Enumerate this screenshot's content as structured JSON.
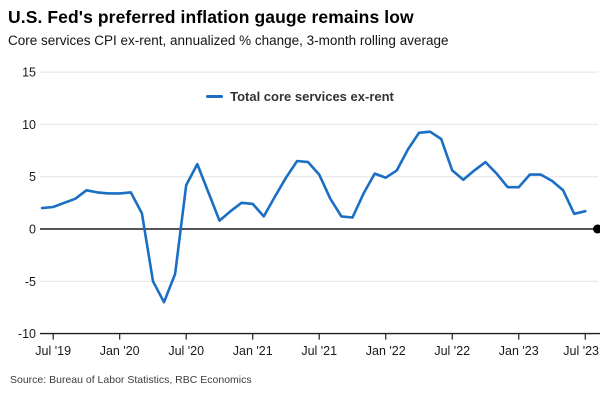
{
  "header": {
    "title": "U.S. Fed's preferred inflation gauge remains low",
    "subtitle": "Core services CPI ex-rent, annualized % change, 3-month rolling average"
  },
  "legend": {
    "label": "Total core services ex-rent"
  },
  "source": "Source: Bureau of Labor Statistics, RBC Economics",
  "colors": {
    "line": "#1a6fc4",
    "grid": "#e3e3e3",
    "axis": "#1f1f1f",
    "tick_text": "#1a1a1a",
    "end_dot": "#000000"
  },
  "chart_data": {
    "type": "line",
    "title": "U.S. Fed's preferred inflation gauge remains low",
    "subtitle": "Core services CPI ex-rent, annualized % change, 3-month rolling average",
    "xlabel": "",
    "ylabel": "",
    "ylim": [
      -10,
      15
    ],
    "y_ticks": [
      15,
      10,
      5,
      0,
      -5,
      -10
    ],
    "grid": "horizontal",
    "legend_position": "top-center",
    "zero_line": true,
    "zero_line_end_dot": {
      "value": 0
    },
    "x_ticks": [
      "2019-07",
      "2020-01",
      "2020-07",
      "2021-01",
      "2021-07",
      "2022-01",
      "2022-07",
      "2023-01",
      "2023-07"
    ],
    "x_tick_labels": [
      "Jul '19",
      "Jan '20",
      "Jul '20",
      "Jan '21",
      "Jul '21",
      "Jan '22",
      "Jul '22",
      "Jan '23",
      "Jul '23"
    ],
    "series": [
      {
        "name": "Total core services ex-rent",
        "color": "#1a6fc4",
        "x": [
          "2019-06",
          "2019-07",
          "2019-08",
          "2019-09",
          "2019-10",
          "2019-11",
          "2019-12",
          "2020-01",
          "2020-02",
          "2020-03",
          "2020-04",
          "2020-05",
          "2020-06",
          "2020-07",
          "2020-08",
          "2020-09",
          "2020-10",
          "2020-11",
          "2020-12",
          "2021-01",
          "2021-02",
          "2021-03",
          "2021-04",
          "2021-05",
          "2021-06",
          "2021-07",
          "2021-08",
          "2021-09",
          "2021-10",
          "2021-11",
          "2021-12",
          "2022-01",
          "2022-02",
          "2022-03",
          "2022-04",
          "2022-05",
          "2022-06",
          "2022-07",
          "2022-08",
          "2022-09",
          "2022-10",
          "2022-11",
          "2022-12",
          "2023-01",
          "2023-02",
          "2023-03",
          "2023-04",
          "2023-05",
          "2023-06",
          "2023-07"
        ],
        "values": [
          2.0,
          2.1,
          2.5,
          2.9,
          3.7,
          3.5,
          3.4,
          3.4,
          3.5,
          1.5,
          -5.0,
          -7.0,
          -4.3,
          4.2,
          6.2,
          3.5,
          0.8,
          1.7,
          2.5,
          2.4,
          1.2,
          3.1,
          4.9,
          6.5,
          6.4,
          5.2,
          2.9,
          1.2,
          1.1,
          3.4,
          5.3,
          4.9,
          5.6,
          7.6,
          9.2,
          9.3,
          8.6,
          5.6,
          4.7,
          5.6,
          6.4,
          5.3,
          4.0,
          4.0,
          5.2,
          5.2,
          4.6,
          3.7,
          1.45,
          1.7
        ]
      }
    ]
  }
}
